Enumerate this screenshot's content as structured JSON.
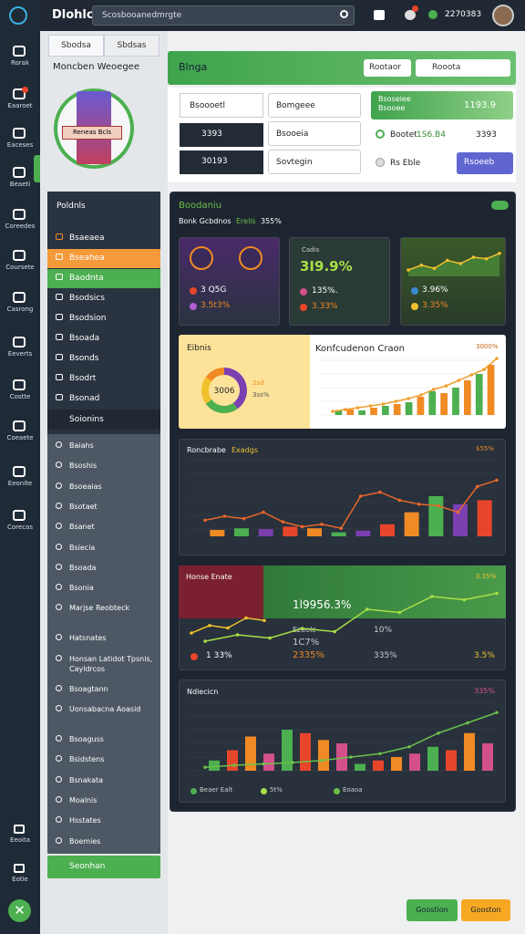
{
  "sidebar": {
    "items": [
      "Rorak",
      "Eaaroet",
      "Eaceses",
      "Beaeti",
      "Coreedes",
      "Coursete",
      "Casrong",
      "Eeverts",
      "Costte",
      "Coeaete",
      "Eeonite",
      "Corecas"
    ],
    "bottom": [
      "Eeoita",
      "Eotie"
    ]
  },
  "topbar": {
    "brand": "Dlohlc",
    "search": "Scosbooanedmrgte",
    "time": "2270383"
  },
  "panel": {
    "tabs": [
      "Sbodsa",
      "Sbdsas"
    ],
    "title": "Moncben Weoegee",
    "image_label": "Reneas Bcls",
    "nav": {
      "header": "Poldnls",
      "items": [
        "Bsaeaea",
        "Bseahea",
        "Baodnta",
        "Bsodsics",
        "Bsodsion",
        "Bsoada",
        "Bsonds",
        "Bsodrt",
        "Bsonad"
      ]
    },
    "section": {
      "header": "Soionins",
      "items": [
        "Baiahs",
        "Bsoshis",
        "Bsoeaias",
        "Bsotaet",
        "Bsanet",
        "Bsiecia",
        "Bsoada",
        "Bsonia",
        "Marjse Reobteck",
        "Hatsnates",
        "Honsan Latidot Tpsnis, Cayldrcos",
        "Bsoagtann",
        "Uonsabacna Aoasid",
        "Bsoaguss",
        "Bsidstens",
        "Bsnakata",
        "Moalnis",
        "Hsstates",
        "Boemies"
      ]
    },
    "button": "Seonhan"
  },
  "header": {
    "title": "Blnga",
    "button": "Rootaor",
    "search": "Rooota"
  },
  "form": {
    "input": "Bsoooetl",
    "rows": [
      "3393",
      "30193"
    ],
    "selects": [
      "Bomgeee",
      "Bsooeia",
      "Sovtegin"
    ],
    "highlight": {
      "label": "Bsoseiee Bsooee",
      "value": "1193.9"
    },
    "radio": {
      "label": "Bootet",
      "value_a": "1S6.B4",
      "value_b": "3393"
    },
    "check": "Rs Eble",
    "button": "Rsoeeb"
  },
  "dashboard": {
    "title": "Boodaniu",
    "subtitle": "Bonk Gcbdnos",
    "subtitle_tag": "Erelis",
    "subtitle_value": "355%",
    "cards": [
      {
        "stats": [
          "3 Q5G",
          "3.5t3%"
        ]
      },
      {
        "label": "Cadis",
        "value": "3I9.9%",
        "stats": [
          "135%.",
          "3.33%"
        ]
      },
      {
        "stats": [
          "3.96%",
          "3.35%"
        ],
        "area": [
          20,
          35,
          25,
          50,
          40,
          60,
          55,
          72
        ],
        "ylim": [
          0,
          100
        ]
      }
    ],
    "chart_a": {
      "side_label": "Eibnis",
      "donut_value": "3006",
      "donut_labels": [
        "2sd",
        "3ss%"
      ],
      "donut": {
        "values": [
          40,
          25,
          20,
          15
        ],
        "colors": [
          "#7b3fb0",
          "#4caf50",
          "#f2c12e",
          "#f08a24"
        ]
      },
      "title": "Konfcudenon Craon",
      "tag": "3000%",
      "bars": [
        5,
        6,
        5,
        8,
        10,
        12,
        14,
        20,
        26,
        24,
        30,
        38,
        45,
        55
      ],
      "line": [
        4,
        6,
        8,
        10,
        12,
        15,
        18,
        22,
        28,
        32,
        38,
        44,
        50,
        62
      ],
      "ylim": [
        0,
        70
      ],
      "colors": [
        "#4caf50",
        "#f08a24"
      ],
      "line_color": "#f0a030"
    },
    "chart_b": {
      "title": "Roncbrabe",
      "tag": "Exadgs",
      "value": "$55%",
      "bars": [
        8,
        10,
        9,
        12,
        10,
        5,
        7,
        15,
        30,
        50,
        40,
        45
      ],
      "line": [
        20,
        25,
        22,
        30,
        18,
        12,
        15,
        10,
        50,
        55,
        45,
        40,
        38,
        30,
        62,
        70
      ],
      "ylim": [
        0,
        100
      ],
      "colors": [
        "#f08a24",
        "#4caf50",
        "#7b3fb0",
        "#e8462a"
      ],
      "line_color": "#e8662a"
    },
    "chart_c": {
      "title": "Honse Enate",
      "value": "1l9956.3%",
      "tag": "3.35%",
      "left_stat": "1 33%",
      "mid_label": "Ezeolc",
      "mid_stats": [
        "1C7%",
        "2335%"
      ],
      "right_stats": [
        "10%",
        "335%",
        "3.5%"
      ],
      "red_line": [
        20,
        35,
        30,
        50,
        45
      ],
      "green_line": [
        10,
        20,
        15,
        30,
        25,
        60,
        55,
        80,
        75,
        85
      ],
      "ylim": [
        0,
        100
      ]
    },
    "chart_d": {
      "title": "Ndiecicn",
      "tag": "335%",
      "legend": [
        "Beaer Ealt",
        "5t%",
        "Eoaoa"
      ],
      "bars": [
        15,
        30,
        50,
        25,
        60,
        55,
        45,
        40,
        10,
        15,
        20,
        25,
        35,
        30,
        55,
        40
      ],
      "line": [
        5,
        8,
        10,
        12,
        15,
        20,
        25,
        35,
        55,
        70,
        85
      ],
      "ylim": [
        0,
        100
      ],
      "colors": [
        "#4caf50",
        "#e8462a",
        "#f08a24",
        "#d4508a"
      ],
      "line_color": "#6cc04a"
    }
  },
  "footer": {
    "buttons": [
      "Goostion",
      "Gooston"
    ]
  }
}
